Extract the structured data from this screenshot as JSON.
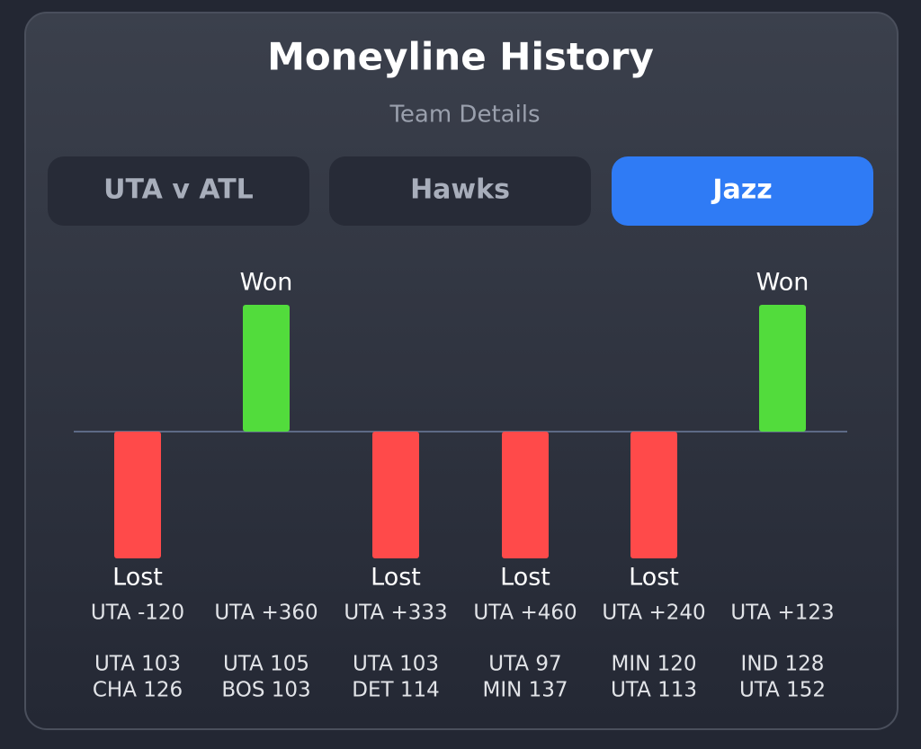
{
  "tabs": [
    "UTA v ATL",
    "Hawks",
    "Jazz"
  ],
  "active_tab": 2,
  "chart_data": {
    "type": "bar",
    "title": "Moneyline History",
    "subtitle": "Team Details",
    "categories": [
      "UTA -120",
      "UTA +360",
      "UTA +333",
      "UTA +460",
      "UTA +240",
      "UTA +123"
    ],
    "values": [
      -1,
      1,
      -1,
      -1,
      -1,
      1
    ],
    "value_labels": [
      "Lost",
      "Won",
      "Lost",
      "Lost",
      "Lost",
      "Won"
    ],
    "scores": [
      [
        "UTA 103",
        "CHA 126"
      ],
      [
        "UTA 105",
        "BOS 103"
      ],
      [
        "UTA 103",
        "DET 114"
      ],
      [
        "UTA 97",
        "MIN 137"
      ],
      [
        "MIN 120",
        "UTA 113"
      ],
      [
        "IND 128",
        "UTA 152"
      ]
    ],
    "colors": {
      "positive": "#52dc3c",
      "negative": "#ff4a4a"
    },
    "ylim": [
      -1,
      1
    ]
  }
}
